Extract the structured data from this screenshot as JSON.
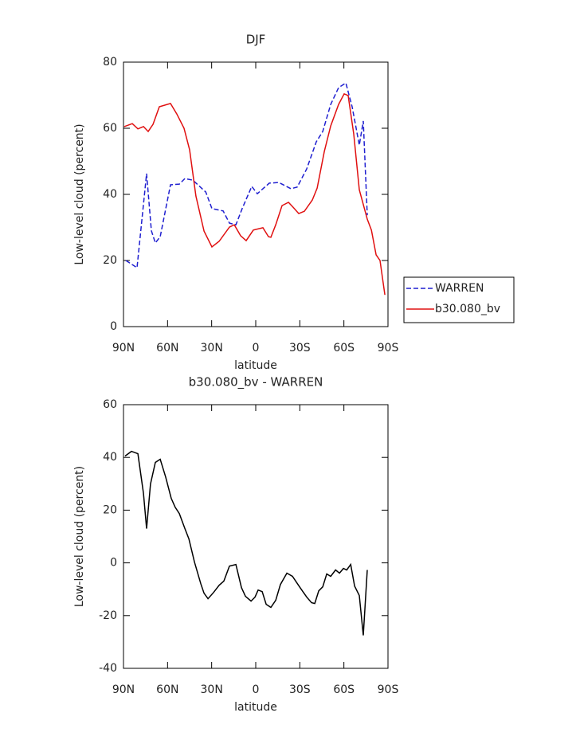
{
  "chart_data": [
    {
      "type": "line",
      "title": "DJF",
      "xlabel": "latitude",
      "ylabel": "Low-level cloud (percent)",
      "xlim": [
        90,
        -90
      ],
      "xticks": [
        {
          "value": 90,
          "label": "90N"
        },
        {
          "value": 60,
          "label": "60N"
        },
        {
          "value": 30,
          "label": "30N"
        },
        0,
        {
          "value": -30,
          "label": "30S"
        },
        {
          "value": -60,
          "label": "60S"
        },
        {
          "value": -90,
          "label": "90S"
        }
      ],
      "ylim": [
        0,
        80
      ],
      "yticks": [
        0,
        20,
        40,
        60,
        80
      ],
      "legend": "right",
      "series": [
        {
          "name": "WARREN",
          "color": "#1f1fd0",
          "line_style": "dashed",
          "x": [
            88.4,
            80.8,
            74.3,
            71,
            68.3,
            65,
            58,
            52,
            48.2,
            42.8,
            34,
            29.8,
            22.2,
            17.9,
            13.5,
            9.2,
            2.7,
            -1.1,
            -9.2,
            -15.7,
            -23.9,
            -28.2,
            -34.7,
            -41.2,
            -45.6,
            -51,
            -56.4,
            -61.3,
            -65.6,
            -70.5,
            -73.2,
            -75.9
          ],
          "values": [
            20,
            17.8,
            46.3,
            29,
            25.3,
            27.2,
            42.9,
            43.1,
            44.8,
            44.3,
            40.7,
            35.7,
            35,
            31.3,
            30.8,
            35.7,
            42.4,
            40.2,
            43.4,
            43.6,
            41.7,
            42.2,
            47.7,
            55.9,
            59,
            67.2,
            72.3,
            73.7,
            66.5,
            54.9,
            62.2,
            33.7
          ]
        },
        {
          "name": "b30.080_bv",
          "color": "#e01010",
          "line_style": "solid",
          "x": [
            89.5,
            84,
            80.2,
            76.4,
            73.2,
            69.9,
            65.6,
            58,
            53.7,
            48.8,
            45,
            40.7,
            35.2,
            29.8,
            24.9,
            17.9,
            14.6,
            10.3,
            6.5,
            1.6,
            -4.9,
            -8.7,
            -10.3,
            -13.6,
            -17.9,
            -22.3,
            -25.5,
            -29.3,
            -33.1,
            -38.5,
            -41.8,
            -46.7,
            -51,
            -56.4,
            -60.2,
            -62.9,
            -66.7,
            -70.5,
            -75.9,
            -78.7,
            -81.9,
            -84.6,
            -87.9
          ],
          "values": [
            60.5,
            61.4,
            59.8,
            60.5,
            59,
            61.2,
            66.5,
            67.5,
            64.3,
            60,
            53.5,
            39.5,
            28.9,
            24.1,
            25.8,
            30.1,
            30.8,
            27.5,
            26,
            29.2,
            29.9,
            27.2,
            27,
            30.8,
            36.6,
            37.6,
            36.1,
            34.2,
            34.9,
            38.3,
            41.9,
            53,
            60.7,
            67.2,
            70.4,
            69.9,
            58.3,
            41.4,
            32.5,
            29.2,
            21.7,
            20,
            9.6
          ]
        }
      ]
    },
    {
      "type": "line",
      "title": "b30.080_bv - WARREN",
      "xlabel": "latitude",
      "ylabel": "Low-level cloud (percent)",
      "xlim": [
        90,
        -90
      ],
      "xticks": [
        {
          "value": 90,
          "label": "90N"
        },
        {
          "value": 60,
          "label": "60N"
        },
        {
          "value": 30,
          "label": "30N"
        },
        0,
        {
          "value": -30,
          "label": "30S"
        },
        {
          "value": -60,
          "label": "60S"
        },
        {
          "value": -90,
          "label": "90S"
        }
      ],
      "ylim": [
        -40,
        60
      ],
      "yticks": [
        -40,
        -20,
        0,
        20,
        40,
        60
      ],
      "series": [
        {
          "color": "#000000",
          "line_style": "solid",
          "x": [
            88.9,
            84.6,
            80.2,
            76.4,
            74.3,
            71.6,
            68.3,
            65,
            61.3,
            57.5,
            54.8,
            52,
            48.2,
            45.5,
            41.7,
            37.4,
            35.2,
            32.5,
            28.7,
            24.9,
            21.7,
            17.9,
            13.5,
            9.7,
            7,
            3.2,
            0.5,
            -1.6,
            -4.4,
            -7.1,
            -10.3,
            -13.6,
            -16.8,
            -21.2,
            -25,
            -29.8,
            -34.7,
            -38,
            -40.2,
            -42.9,
            -45.6,
            -48.3,
            -51,
            -54.3,
            -57,
            -59.7,
            -61.9,
            -64.6,
            -67.3,
            -70.5,
            -73.2,
            -75.9
          ],
          "values": [
            40.5,
            42.3,
            41.4,
            26.3,
            13,
            29.9,
            38.1,
            39.3,
            32.6,
            24.5,
            21.1,
            18.7,
            13,
            9.1,
            0.3,
            -7.9,
            -11.5,
            -13.6,
            -11.2,
            -8.5,
            -6.9,
            -1.2,
            -0.6,
            -9.4,
            -12.7,
            -14.5,
            -13,
            -10.3,
            -10.9,
            -15.7,
            -16.9,
            -14.2,
            -8.2,
            -3.9,
            -5.1,
            -9.1,
            -13,
            -15.1,
            -15.4,
            -10.6,
            -9.1,
            -4.2,
            -5.1,
            -2.7,
            -3.9,
            -2.1,
            -2.7,
            -0.6,
            -8.8,
            -12.4,
            -27.5,
            -2.7
          ]
        }
      ]
    }
  ]
}
